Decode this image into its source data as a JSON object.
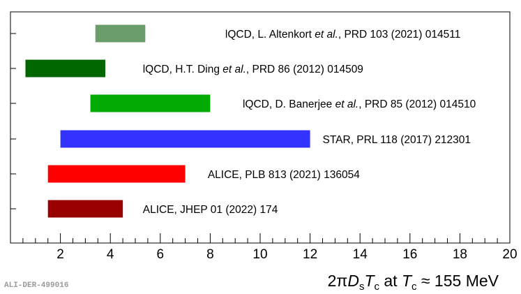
{
  "chart_data": {
    "type": "bar",
    "orientation": "horizontal-range",
    "xlim": [
      0,
      20
    ],
    "x_ticks": [
      2,
      4,
      6,
      8,
      10,
      12,
      14,
      16,
      18,
      20
    ],
    "x_minor_step": 0.5,
    "x_major_step": 2,
    "xlabel": {
      "parts": [
        "2π",
        "D",
        "s",
        "T",
        "c",
        " at ",
        "T",
        "c",
        " ≈ 155 MeV"
      ]
    },
    "series": [
      {
        "label_parts": [
          "lQCD, L. Altenkort ",
          "et al.",
          ", PRD 103 (2021) 014511"
        ],
        "x_low": 3.4,
        "x_high": 5.4,
        "label_x": 8.6,
        "color": "#6b9d6b"
      },
      {
        "label_parts": [
          "lQCD, H.T. Ding ",
          "et al.",
          ", PRD 86 (2012) 014509"
        ],
        "x_low": 0.6,
        "x_high": 3.8,
        "label_x": 5.3,
        "color": "#006600"
      },
      {
        "label_parts": [
          "lQCD, D. Banerjee ",
          "et al.",
          ", PRD 85 (2012) 014510"
        ],
        "x_low": 3.2,
        "x_high": 8.0,
        "label_x": 9.3,
        "color": "#00aa00"
      },
      {
        "label_parts": [
          "STAR, PRL 118 (2017) 212301"
        ],
        "x_low": 2.0,
        "x_high": 12.0,
        "label_x": 12.5,
        "color": "#3333ff"
      },
      {
        "label_parts": [
          "ALICE, PLB 813 (2021) 136054"
        ],
        "x_low": 1.5,
        "x_high": 7.0,
        "label_x": 7.9,
        "color": "#ff0000"
      },
      {
        "label_parts": [
          "ALICE, JHEP 01 (2022) 174"
        ],
        "x_low": 1.5,
        "x_high": 4.5,
        "label_x": 5.3,
        "color": "#990000"
      }
    ]
  },
  "watermark": "ALI-DER-499016"
}
